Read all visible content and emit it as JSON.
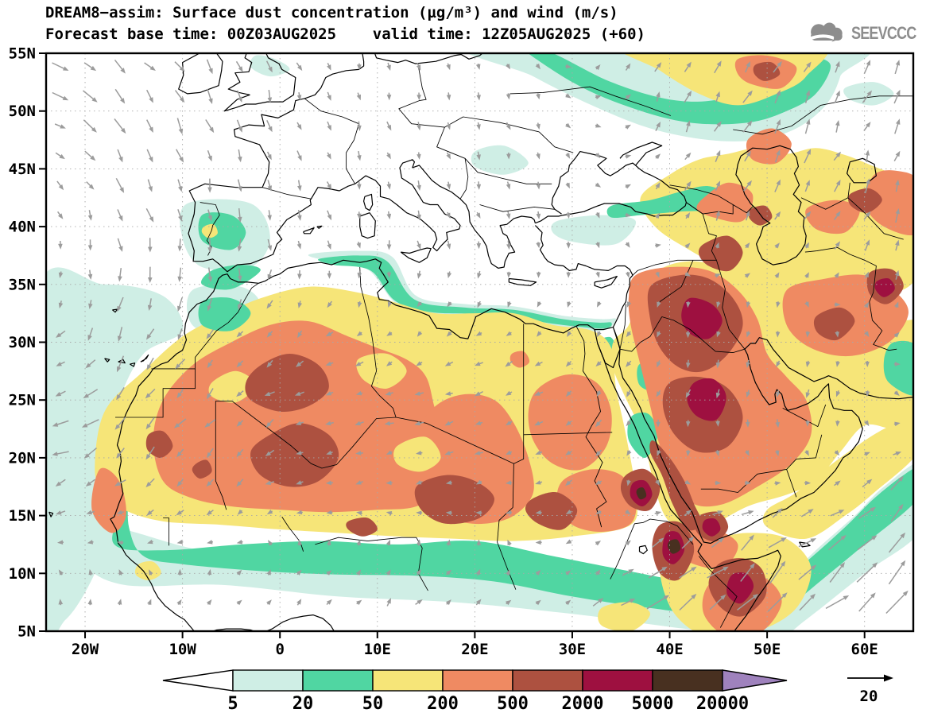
{
  "header": {
    "title_line1": "DREAM8−assim: Surface dust concentration (µg/m³) and wind (m/s)",
    "title_line2": "Forecast base time: 00Z03AUG2025    valid time: 12Z05AUG2025 (+60)",
    "logo_text": "SEEVCCC"
  },
  "map": {
    "lat_labels": [
      "55N",
      "50N",
      "45N",
      "40N",
      "35N",
      "30N",
      "25N",
      "20N",
      "15N",
      "10N",
      "5N"
    ],
    "lon_labels": [
      "20W",
      "10W",
      "0",
      "10E",
      "20E",
      "30E",
      "40E",
      "50E",
      "60E"
    ]
  },
  "colorbar": {
    "labels": [
      "5",
      "20",
      "50",
      "200",
      "500",
      "2000",
      "5000",
      "20000"
    ],
    "colors": [
      "#ffffff",
      "#cfeee5",
      "#50d6a2",
      "#f6e578",
      "#ef8a62",
      "#ad5140",
      "#9e1040",
      "#483020",
      "#9f82bd"
    ]
  },
  "wind_reference": {
    "label": "20"
  },
  "chart_data": {
    "type": "heatmap",
    "title": "DREAM8−assim: Surface dust concentration (µg/m³) and wind (m/s)",
    "subtitle": "Forecast base time: 00Z03AUG2025    valid time: 12Z05AUG2025 (+60)",
    "x_ticks": [
      "20W",
      "10W",
      "0",
      "10E",
      "20E",
      "30E",
      "40E",
      "50E",
      "60E"
    ],
    "y_ticks": [
      "55N",
      "50N",
      "45N",
      "40N",
      "35N",
      "30N",
      "25N",
      "20N",
      "15N",
      "10N",
      "5N"
    ],
    "colorbar_levels": [
      5,
      20,
      50,
      200,
      500,
      2000,
      5000,
      20000
    ],
    "colorbar_colors": [
      "#ffffff",
      "#cfeee5",
      "#50d6a2",
      "#f6e578",
      "#ef8a62",
      "#ad5140",
      "#9e1040",
      "#483020",
      "#9f82bd"
    ],
    "wind_reference_ms": 20
  }
}
